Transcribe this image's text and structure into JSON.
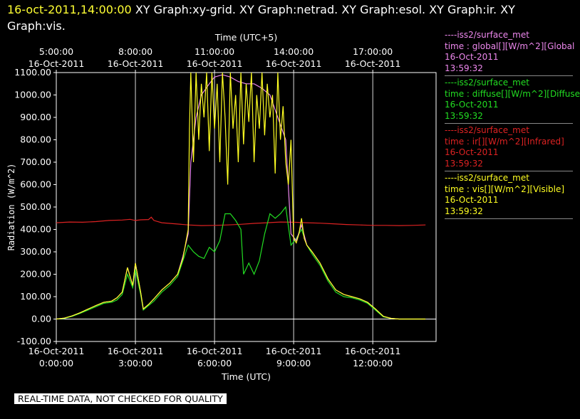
{
  "header": {
    "date_text": "16-oct-2011,14:00:00",
    "graphs_text": "XY Graph:xy-grid.  XY Graph:netrad.  XY Graph:esol.  XY Graph:ir.  XY Graph:vis."
  },
  "notice": "REAL-TIME DATA, NOT CHECKED FOR QUALITY",
  "colors": {
    "global": "#ee88ee",
    "diffuse": "#22dd22",
    "ir": "#dd2222",
    "vis": "#ffff22",
    "grid": "#ffffff",
    "background": "#000000"
  },
  "legend": [
    {
      "dash": "----",
      "source": "iss2/surface_met",
      "variable": "time : global[][W/m^2][Global",
      "date": "16-Oct-2011",
      "time": "13:59:32",
      "color": "#ee88ee"
    },
    {
      "dash": "----",
      "source": "iss2/surface_met",
      "variable": "time : diffuse[][W/m^2][Diffuse",
      "date": "16-Oct-2011",
      "time": "13:59:32",
      "color": "#22dd22"
    },
    {
      "dash": "----",
      "source": "iss2/surface_met",
      "variable": "time : ir[][W/m^2][Infrared]",
      "date": "16-Oct-2011",
      "time": "13:59:32",
      "color": "#dd2222"
    },
    {
      "dash": "----",
      "source": "iss2/surface_met",
      "variable": "time : vis[][W/m^2][Visible]",
      "date": "16-Oct-2011",
      "time": "13:59:32",
      "color": "#ffff22"
    }
  ],
  "chart_data": {
    "type": "line",
    "xlabel": "Time (UTC)",
    "xlabel_top": "Time (UTC+5)",
    "ylabel": "Radiation (W/m^2)",
    "x_unit": "hours UTC, 16-Oct-2011",
    "xlim": [
      0,
      14.4
    ],
    "ylim": [
      -100,
      1100
    ],
    "grid": true,
    "y_ticks": [
      "-100.00",
      "0.00",
      "100.00",
      "200.00",
      "300.00",
      "400.00",
      "500.00",
      "600.00",
      "700.00",
      "800.00",
      "900.00",
      "1000.00",
      "1100.00"
    ],
    "y_tick_values": [
      -100,
      0,
      100,
      200,
      300,
      400,
      500,
      600,
      700,
      800,
      900,
      1000,
      1100
    ],
    "x_ticks_bottom": [
      {
        "x": 0,
        "date": "16-Oct-2011",
        "time": "0:00:00"
      },
      {
        "x": 3,
        "date": "16-Oct-2011",
        "time": "3:00:00"
      },
      {
        "x": 6,
        "date": "16-Oct-2011",
        "time": "6:00:00"
      },
      {
        "x": 9,
        "date": "16-Oct-2011",
        "time": "9:00:00"
      },
      {
        "x": 12,
        "date": "16-Oct-2011",
        "time": "12:00:00"
      }
    ],
    "x_ticks_top": [
      {
        "x": 0,
        "time": "5:00:00",
        "date": "16-Oct-2011"
      },
      {
        "x": 3,
        "time": "8:00:00",
        "date": "16-Oct-2011"
      },
      {
        "x": 6,
        "time": "11:00:00",
        "date": "16-Oct-2011"
      },
      {
        "x": 9,
        "time": "14:00:00",
        "date": "16-Oct-2011"
      },
      {
        "x": 12,
        "time": "17:00:00",
        "date": "16-Oct-2011"
      }
    ],
    "series": [
      {
        "key": "ir",
        "color": "#dd2222",
        "x": [
          0,
          0.5,
          1,
          1.5,
          2,
          2.5,
          2.8,
          3,
          3.2,
          3.5,
          3.6,
          3.7,
          4,
          4.5,
          5,
          5.5,
          6,
          6.5,
          7,
          7.5,
          8,
          8.5,
          9,
          9.5,
          10,
          10.5,
          11,
          11.5,
          12,
          12.5,
          13,
          13.5,
          14
        ],
        "y": [
          430,
          433,
          432,
          435,
          440,
          442,
          445,
          440,
          443,
          444,
          455,
          440,
          430,
          425,
          420,
          417,
          418,
          420,
          423,
          427,
          430,
          433,
          432,
          430,
          428,
          425,
          422,
          420,
          418,
          418,
          417,
          418,
          420
        ]
      },
      {
        "key": "diffuse",
        "color": "#22dd22",
        "x": [
          0,
          0.3,
          0.6,
          0.9,
          1.2,
          1.5,
          1.8,
          2.1,
          2.3,
          2.5,
          2.7,
          2.9,
          3.0,
          3.2,
          3.3,
          3.5,
          3.7,
          4,
          4.3,
          4.6,
          4.8,
          5.0,
          5.2,
          5.4,
          5.6,
          5.8,
          6.0,
          6.2,
          6.4,
          6.6,
          6.8,
          7.0,
          7.1,
          7.3,
          7.5,
          7.7,
          7.9,
          8.1,
          8.3,
          8.5,
          8.7,
          8.9,
          9.1,
          9.3,
          9.5,
          9.7,
          10,
          10.3,
          10.6,
          10.9,
          11.2,
          11.5,
          11.8,
          12.1,
          12.4,
          12.7,
          13,
          13.5,
          14
        ],
        "y": [
          0,
          3,
          12,
          25,
          40,
          55,
          70,
          75,
          85,
          110,
          200,
          140,
          220,
          110,
          40,
          60,
          80,
          120,
          150,
          190,
          260,
          330,
          300,
          280,
          270,
          320,
          300,
          350,
          470,
          470,
          440,
          400,
          200,
          250,
          200,
          260,
          380,
          470,
          450,
          470,
          500,
          330,
          360,
          400,
          330,
          290,
          240,
          170,
          120,
          100,
          95,
          85,
          70,
          40,
          10,
          3,
          0,
          0,
          0
        ]
      },
      {
        "key": "global",
        "color": "#ee88ee",
        "x": [
          0,
          0.3,
          0.6,
          0.9,
          1.2,
          1.5,
          1.8,
          2.1,
          2.3,
          2.5,
          2.7,
          2.9,
          3.0,
          3.2,
          3.3,
          3.5,
          3.7,
          4,
          4.3,
          4.6,
          4.8,
          5.0,
          5.1,
          5.3,
          5.5,
          5.8,
          6.0,
          6.3,
          6.6,
          6.9,
          7.2,
          7.5,
          7.8,
          8.1,
          8.4,
          8.7,
          8.9,
          9.1,
          9.3,
          9.5,
          9.7,
          10,
          10.3,
          10.6,
          10.9,
          11.2,
          11.5,
          11.8,
          12.1,
          12.4,
          12.7,
          13,
          13.5,
          14
        ],
        "y": [
          0,
          4,
          14,
          28,
          44,
          60,
          75,
          80,
          95,
          120,
          230,
          150,
          250,
          120,
          45,
          65,
          90,
          130,
          160,
          200,
          280,
          380,
          700,
          900,
          1000,
          1050,
          1080,
          1090,
          1080,
          1060,
          1050,
          1050,
          1030,
          1000,
          900,
          800,
          380,
          350,
          420,
          330,
          300,
          250,
          180,
          130,
          110,
          100,
          90,
          75,
          45,
          12,
          3,
          0,
          0,
          0
        ]
      },
      {
        "key": "vis",
        "color": "#ffff22",
        "x": [
          0,
          0.3,
          0.6,
          0.9,
          1.2,
          1.5,
          1.8,
          2.1,
          2.3,
          2.5,
          2.7,
          2.9,
          3.0,
          3.2,
          3.3,
          3.5,
          3.7,
          4,
          4.3,
          4.6,
          4.8,
          5.0,
          5.05,
          5.1,
          5.2,
          5.3,
          5.4,
          5.5,
          5.6,
          5.7,
          5.8,
          5.9,
          6.0,
          6.1,
          6.2,
          6.3,
          6.4,
          6.5,
          6.6,
          6.7,
          6.8,
          6.9,
          7.0,
          7.1,
          7.2,
          7.3,
          7.4,
          7.5,
          7.6,
          7.7,
          7.8,
          7.9,
          8.0,
          8.1,
          8.2,
          8.3,
          8.4,
          8.5,
          8.6,
          8.7,
          8.8,
          8.9,
          9.0,
          9.1,
          9.2,
          9.3,
          9.4,
          9.5,
          9.7,
          10,
          10.3,
          10.6,
          10.9,
          11.2,
          11.5,
          11.8,
          12.1,
          12.4,
          12.7,
          13,
          13.5,
          14
        ],
        "y": [
          0,
          4,
          14,
          28,
          44,
          60,
          75,
          80,
          95,
          120,
          230,
          150,
          250,
          120,
          45,
          65,
          90,
          130,
          160,
          200,
          270,
          400,
          850,
          1100,
          700,
          1100,
          800,
          1050,
          900,
          1100,
          750,
          1100,
          850,
          1050,
          700,
          1100,
          900,
          600,
          1100,
          850,
          1000,
          700,
          1100,
          780,
          1050,
          880,
          1100,
          700,
          1000,
          850,
          1100,
          820,
          1050,
          900,
          1000,
          650,
          1100,
          800,
          950,
          700,
          600,
          800,
          360,
          340,
          380,
          450,
          360,
          330,
          300,
          250,
          180,
          130,
          110,
          100,
          90,
          75,
          45,
          12,
          3,
          0,
          0,
          0
        ]
      }
    ]
  }
}
